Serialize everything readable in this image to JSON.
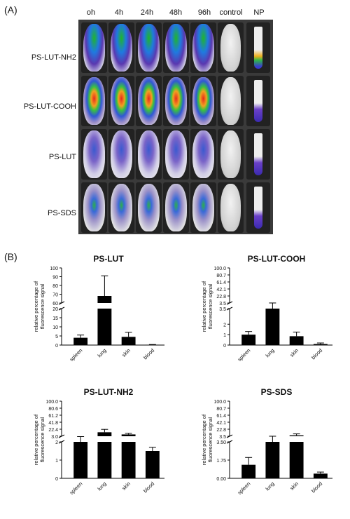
{
  "panel_a": {
    "label": "(A)",
    "columns": [
      "oh",
      "4h",
      "24h",
      "48h",
      "96h",
      "control",
      "NP"
    ],
    "rows": [
      "PS-LUT-NH2",
      "PS-LUT-COOH",
      "PS-LUT",
      "PS-SDS"
    ]
  },
  "panel_b": {
    "label": "(B)"
  },
  "chart_data": [
    {
      "type": "bar",
      "title": "PS-LUT",
      "ylabel": "relative percentage of fluorescence signal",
      "categories": [
        "spleen",
        "lung",
        "skin",
        "blood"
      ],
      "values": [
        4.0,
        68,
        4.5,
        0.2
      ],
      "errors": [
        1.5,
        23,
        2.5,
        0.1
      ],
      "axis_break": {
        "lower": [
          0,
          20
        ],
        "upper": [
          60,
          100
        ]
      },
      "yticks_lower": [
        "0",
        "5",
        "10",
        "15",
        "20"
      ],
      "yticks_upper": [
        "60",
        "70",
        "80",
        "90",
        "100"
      ]
    },
    {
      "type": "bar",
      "title": "PS-LUT-COOH",
      "ylabel": "relative percentage of fluorescence signal",
      "categories": [
        "spleen",
        "lung",
        "skin",
        "blood"
      ],
      "values": [
        1.0,
        3.5,
        0.85,
        0.1
      ],
      "errors": [
        0.3,
        0.05,
        0.4,
        0.1
      ],
      "axis_break": {
        "lower": [
          0,
          3.5
        ],
        "upper": [
          3.5,
          100
        ]
      },
      "yticks_lower": [
        "0",
        "1",
        "2",
        "3.5"
      ],
      "yticks_upper": [
        "3.5",
        "22.8",
        "42.1",
        "61.4",
        "80.7",
        "100.0"
      ]
    },
    {
      "type": "bar",
      "title": "PS-LUT-NH2",
      "ylabel": "relative percentage of fluorescence signal",
      "categories": [
        "spleen",
        "lung",
        "skin",
        "blood"
      ],
      "values": [
        2.0,
        14,
        8,
        1.5
      ],
      "errors": [
        0.05,
        8,
        3,
        0.2
      ],
      "axis_break": {
        "lower": [
          0,
          2
        ],
        "upper": [
          3.0,
          100
        ]
      },
      "yticks_lower": [
        "0",
        "1",
        "2"
      ],
      "yticks_upper": [
        "3.0",
        "22.4",
        "41.8",
        "61.2",
        "80.6",
        "100.0"
      ]
    },
    {
      "type": "bar",
      "title": "PS-SDS",
      "ylabel": "relative percentage of fluorescence signal",
      "categories": [
        "spleen",
        "lung",
        "skin",
        "blood"
      ],
      "values": [
        1.3,
        3.5,
        6,
        0.45
      ],
      "errors": [
        0.7,
        0.05,
        4,
        0.15
      ],
      "axis_break": {
        "lower": [
          0,
          3.5
        ],
        "upper": [
          3.5,
          100
        ]
      },
      "yticks_lower": [
        "0.00",
        "1.75",
        "3.50"
      ],
      "yticks_upper": [
        "3.5",
        "22.8",
        "42.1",
        "61.4",
        "80.7",
        "100.0"
      ]
    }
  ]
}
